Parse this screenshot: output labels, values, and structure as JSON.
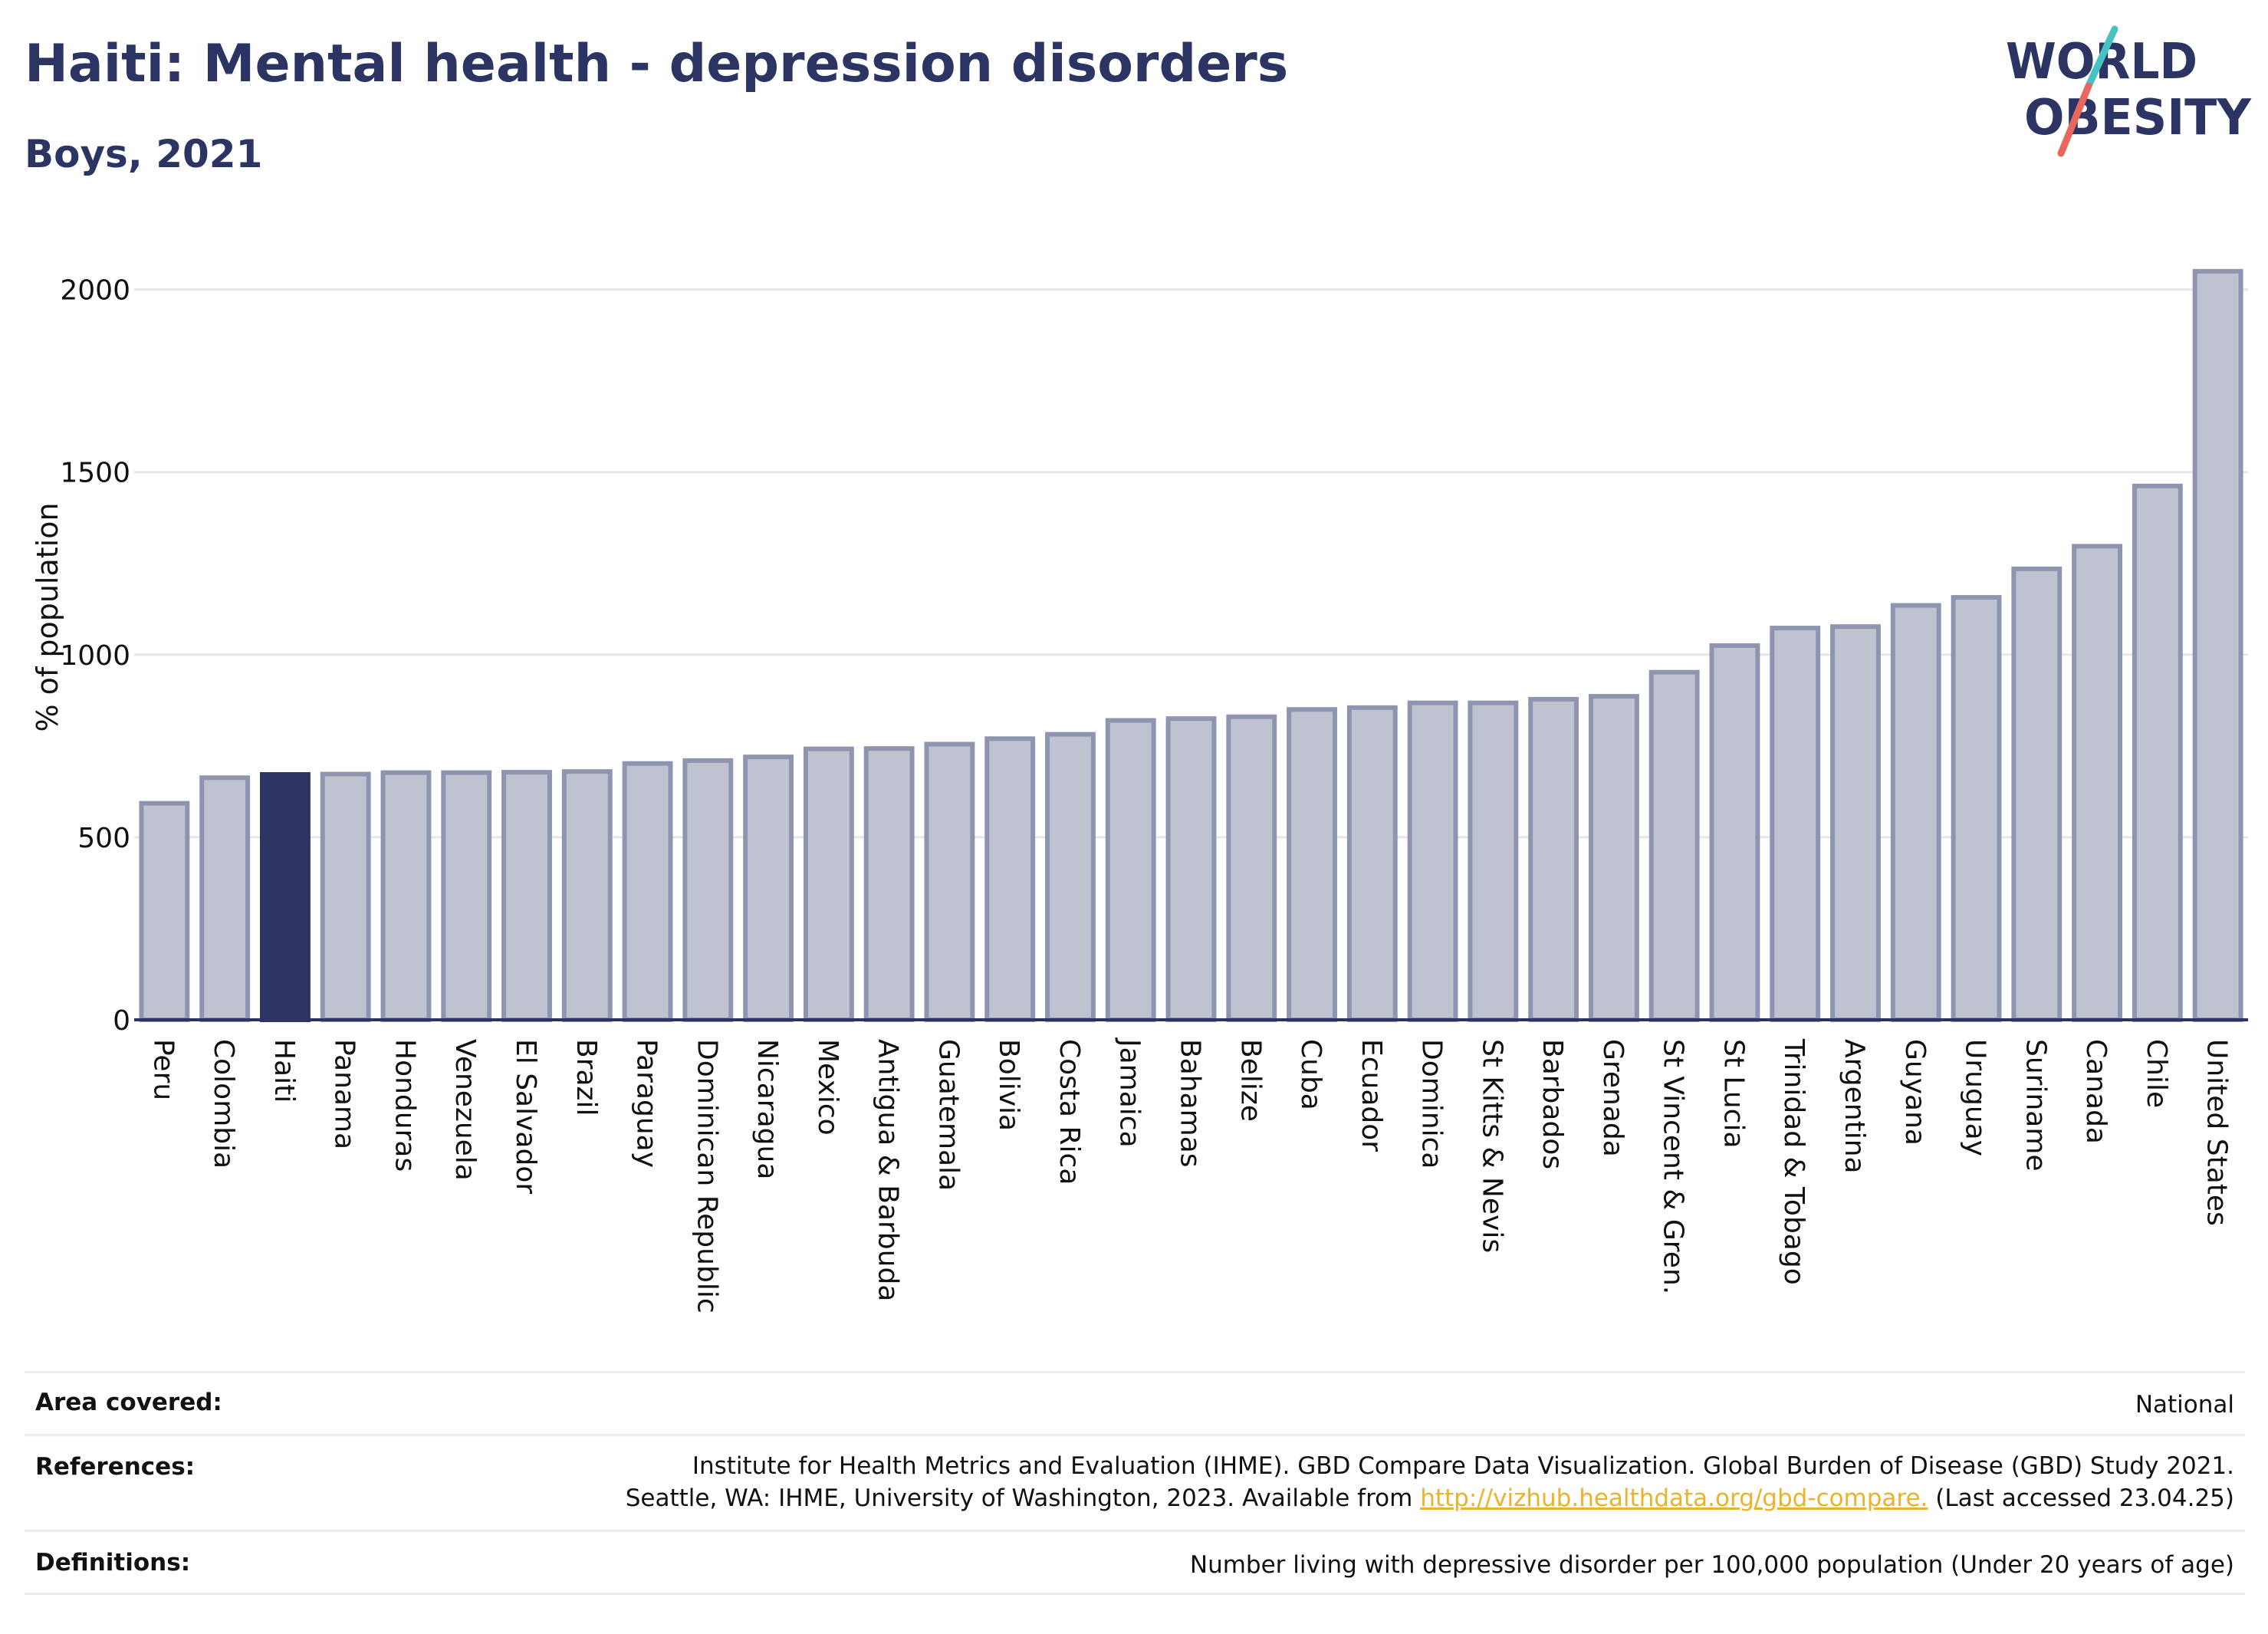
{
  "header": {
    "title": "Haiti: Mental health - depression disorders",
    "subtitle": "Boys, 2021"
  },
  "logo": {
    "line1": "WORLD",
    "line2": "OBESITY",
    "text_color": "#2b3463",
    "accent_colors": [
      "#47c2c2",
      "#e8685e"
    ]
  },
  "chart_data": {
    "type": "bar",
    "ylabel": "% of population",
    "ylim": [
      0,
      2100
    ],
    "yticks": [
      0,
      500,
      1000,
      1500,
      2000
    ],
    "grid": true,
    "highlight_category": "Haiti",
    "colors": {
      "bar_fill": "#bfc3d0",
      "bar_stroke": "#8f95b0",
      "highlight_fill": "#2b3463",
      "gridline": "#e5e7ec",
      "axis": "#2b3463"
    },
    "categories": [
      "Peru",
      "Colombia",
      "Haiti",
      "Panama",
      "Honduras",
      "Venezuela",
      "El Salvador",
      "Brazil",
      "Paraguay",
      "Dominican Republic",
      "Nicaragua",
      "Mexico",
      "Antigua & Barbuda",
      "Guatemala",
      "Bolivia",
      "Costa Rica",
      "Jamaica",
      "Bahamas",
      "Belize",
      "Cuba",
      "Ecuador",
      "Dominica",
      "St Kitts & Nevis",
      "Barbados",
      "Grenada",
      "St Vincent & Gren.",
      "St Lucia",
      "Trinidad & Tobago",
      "Argentina",
      "Guyana",
      "Uruguay",
      "Suriname",
      "Canada",
      "Chile",
      "United States"
    ],
    "values": [
      593,
      663,
      672,
      673,
      677,
      677,
      678,
      680,
      702,
      710,
      720,
      742,
      743,
      755,
      770,
      782,
      820,
      825,
      830,
      850,
      855,
      868,
      868,
      878,
      886,
      952,
      1025,
      1073,
      1077,
      1135,
      1157,
      1235,
      1297,
      1462,
      2050
    ]
  },
  "footer": {
    "area_label": "Area covered:",
    "area_value": "National",
    "references_label": "References:",
    "references_line1": "Institute for Health Metrics and Evaluation (IHME). GBD Compare Data Visualization. Global Burden of Disease (GBD) Study 2021.",
    "references_line2_prefix": "Seattle, WA: IHME, University of Washington, 2023. Available from ",
    "references_link": "http://vizhub.healthdata.org/gbd-compare.",
    "references_line2_suffix": " (Last accessed 23.04.25)",
    "definitions_label": "Definitions:",
    "definitions_value": "Number living with depressive disorder per 100,000 population (Under 20 years of age)"
  }
}
